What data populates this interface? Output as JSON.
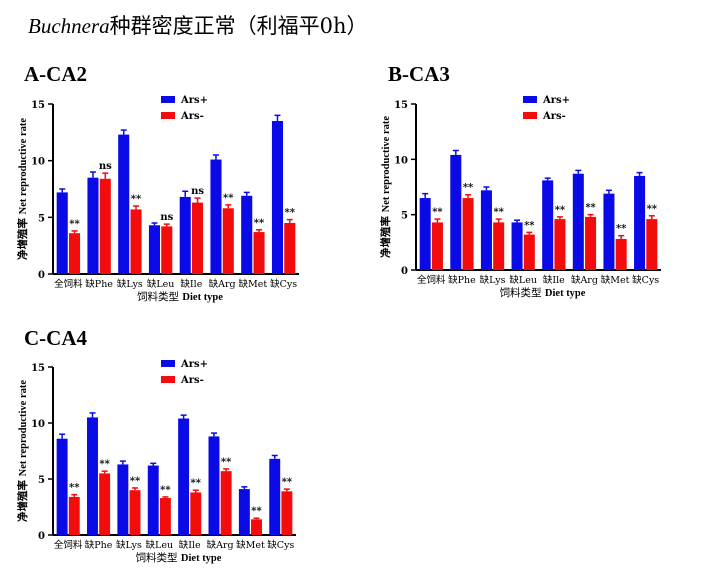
{
  "page_title": {
    "italic": "Buchnera",
    "rest": "种群密度正常（利福平0h）"
  },
  "colors": {
    "ars_plus": "#0a0ae6",
    "ars_minus": "#f20c0c"
  },
  "chart_data": [
    {
      "id": "A",
      "type": "bar",
      "title": "A-CA2",
      "xlabel_cn": "饲料类型",
      "xlabel_en": "Diet type",
      "ylabel_cn": "净增殖率",
      "ylabel_en": "Net reproductive rate",
      "ylim": [
        0,
        15
      ],
      "yticks": [
        0,
        5,
        10,
        15
      ],
      "legend_position": "top-right",
      "categories": [
        "全饲料",
        "缺Phe",
        "缺Lys",
        "缺Leu",
        "缺Ile",
        "缺Arg",
        "缺Met",
        "缺Cys"
      ],
      "series": [
        {
          "name": "Ars+",
          "color": "#0a0ae6",
          "values": [
            7.2,
            8.5,
            12.3,
            4.3,
            6.8,
            10.1,
            6.9,
            13.5
          ],
          "errors": [
            0.3,
            0.5,
            0.4,
            0.2,
            0.5,
            0.4,
            0.3,
            0.5
          ]
        },
        {
          "name": "Ars-",
          "color": "#f20c0c",
          "values": [
            3.6,
            8.4,
            5.7,
            4.2,
            6.3,
            5.8,
            3.7,
            4.5
          ],
          "errors": [
            0.2,
            0.5,
            0.3,
            0.2,
            0.4,
            0.3,
            0.2,
            0.3
          ]
        }
      ],
      "annotations": [
        "**",
        "ns",
        "**",
        "ns",
        "ns",
        "**",
        "**",
        "**"
      ]
    },
    {
      "id": "B",
      "type": "bar",
      "title": "B-CA3",
      "xlabel_cn": "饲料类型",
      "xlabel_en": "Diet type",
      "ylabel_cn": "净增殖率",
      "ylabel_en": "Net reproductive rate",
      "ylim": [
        0,
        15
      ],
      "yticks": [
        0,
        5,
        10,
        15
      ],
      "legend_position": "top-right",
      "categories": [
        "全饲料",
        "缺Phe",
        "缺Lys",
        "缺Leu",
        "缺Ile",
        "缺Arg",
        "缺Met",
        "缺Cys"
      ],
      "series": [
        {
          "name": "Ars+",
          "color": "#0a0ae6",
          "values": [
            6.5,
            10.4,
            7.2,
            4.3,
            8.1,
            8.7,
            6.9,
            8.5
          ],
          "errors": [
            0.4,
            0.4,
            0.3,
            0.2,
            0.2,
            0.3,
            0.3,
            0.3
          ]
        },
        {
          "name": "Ars-",
          "color": "#f20c0c",
          "values": [
            4.3,
            6.5,
            4.3,
            3.2,
            4.6,
            4.8,
            2.8,
            4.6
          ],
          "errors": [
            0.3,
            0.3,
            0.3,
            0.2,
            0.2,
            0.2,
            0.3,
            0.3
          ]
        }
      ],
      "annotations": [
        "**",
        "**",
        "**",
        "**",
        "**",
        "**",
        "**",
        "**"
      ]
    },
    {
      "id": "C",
      "type": "bar",
      "title": "C-CA4",
      "xlabel_cn": "饲料类型",
      "xlabel_en": "Diet type",
      "ylabel_cn": "净增殖率",
      "ylabel_en": "Net reproductive rate",
      "ylim": [
        0,
        15
      ],
      "yticks": [
        0,
        5,
        10,
        15
      ],
      "legend_position": "top-right",
      "categories": [
        "全饲料",
        "缺Phe",
        "缺Lys",
        "缺Leu",
        "缺Ile",
        "缺Arg",
        "缺Met",
        "缺Cys"
      ],
      "series": [
        {
          "name": "Ars+",
          "color": "#0a0ae6",
          "values": [
            8.6,
            10.5,
            6.3,
            6.2,
            10.4,
            8.8,
            4.1,
            6.8
          ],
          "errors": [
            0.4,
            0.4,
            0.3,
            0.2,
            0.3,
            0.3,
            0.2,
            0.3
          ]
        },
        {
          "name": "Ars-",
          "color": "#f20c0c",
          "values": [
            3.4,
            5.5,
            4.0,
            3.3,
            3.8,
            5.7,
            1.4,
            3.9
          ],
          "errors": [
            0.2,
            0.2,
            0.2,
            0.1,
            0.2,
            0.2,
            0.1,
            0.2
          ]
        }
      ],
      "annotations": [
        "**",
        "**",
        "**",
        "**",
        "**",
        "**",
        "**",
        "**"
      ]
    }
  ]
}
